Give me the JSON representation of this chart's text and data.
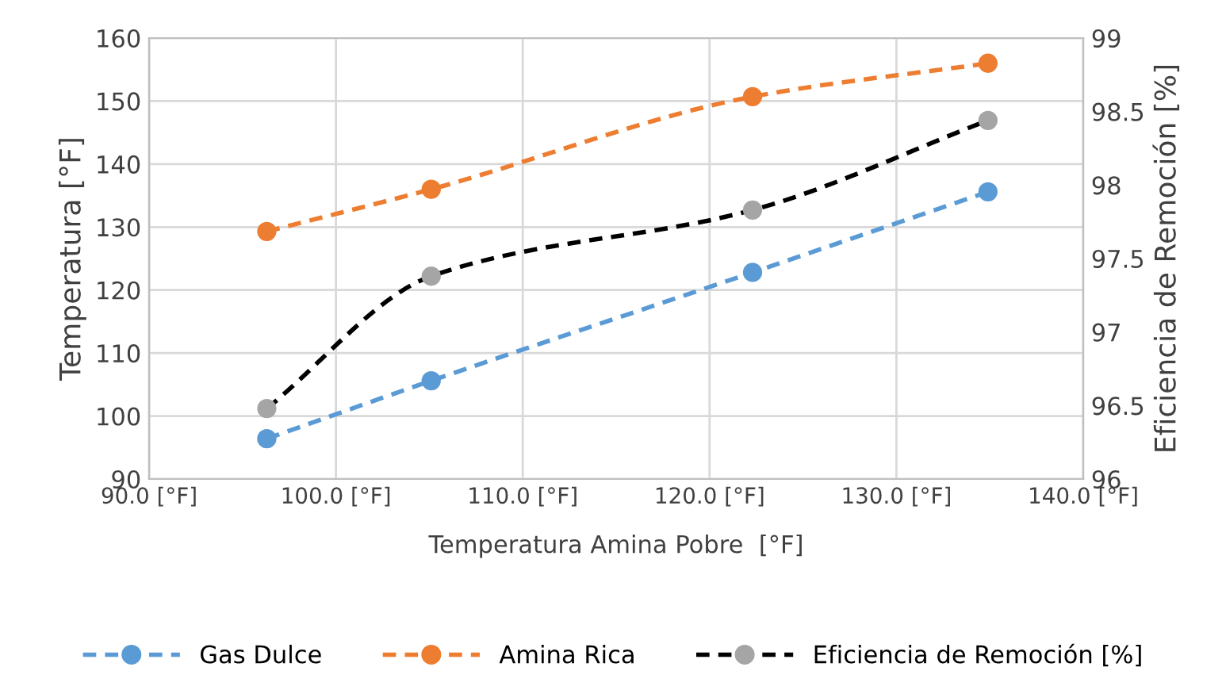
{
  "chart_data": {
    "type": "line",
    "xlabel": "Temperatura Amina Pobre  [°F]",
    "ylabel": "Temperatura [°F]",
    "y2label": "Eficiencia de Remoción [%]",
    "xlim": [
      90,
      140
    ],
    "xticks": [
      {
        "value": 90,
        "label": "90.0 [°F]"
      },
      {
        "value": 100,
        "label": "100.0 [°F]"
      },
      {
        "value": 110,
        "label": "110.0 [°F]"
      },
      {
        "value": 120,
        "label": "120.0 [°F]"
      },
      {
        "value": 130,
        "label": "130.0 [°F]"
      },
      {
        "value": 140,
        "label": "140.0 [°F]"
      }
    ],
    "ylim": [
      90,
      160
    ],
    "yticks": [
      90,
      100,
      110,
      120,
      130,
      140,
      150,
      160
    ],
    "y2lim": [
      96,
      99
    ],
    "y2ticks": [
      96,
      96.5,
      97,
      97.5,
      98,
      98.5,
      99
    ],
    "x": [
      96.3,
      105.1,
      122.3,
      134.9
    ],
    "series": [
      {
        "name": "Gas Dulce",
        "color": "#5b9bd5",
        "values": [
          96.4,
          105.6,
          122.8,
          135.6
        ]
      },
      {
        "name": "Amina Rica",
        "color": "#ed7d31",
        "values": [
          129.3,
          136.0,
          150.7,
          156.0
        ]
      },
      {
        "name": "Eficiencia de Remoción [%]",
        "color": "#000000",
        "colors": [
          "#a5a5a5",
          "#a5a5a5",
          "#a5a5a5",
          "#a5a5a5"
        ],
        "axis": "y2",
        "values": [
          96.48,
          97.38,
          97.83,
          98.44
        ]
      }
    ],
    "grid": true,
    "legend": "bottom",
    "marker": "circle",
    "line_style": "dashed"
  }
}
